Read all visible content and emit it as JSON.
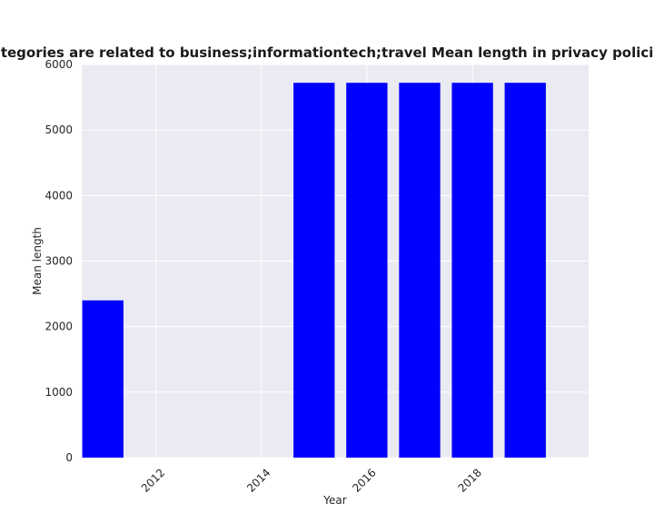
{
  "chart_data": {
    "type": "bar",
    "title": "en categories are related to business;informationtech;travel Mean length in privacy policies by",
    "xlabel": "Year",
    "ylabel": "Mean length",
    "x": [
      2011,
      2012,
      2013,
      2014,
      2015,
      2016,
      2017,
      2018,
      2019
    ],
    "values": [
      2400,
      null,
      null,
      null,
      5720,
      5720,
      5720,
      5720,
      5720
    ],
    "xlim": [
      2010.6,
      2020.2
    ],
    "ylim": [
      0,
      6000
    ],
    "xticks": [
      2012,
      2014,
      2016,
      2018
    ],
    "yticks": [
      0,
      1000,
      2000,
      3000,
      4000,
      5000,
      6000
    ],
    "bar_color": "#0000ff",
    "background_color": "#eaeaf2",
    "grid_color": "#ffffff",
    "grid": true
  }
}
